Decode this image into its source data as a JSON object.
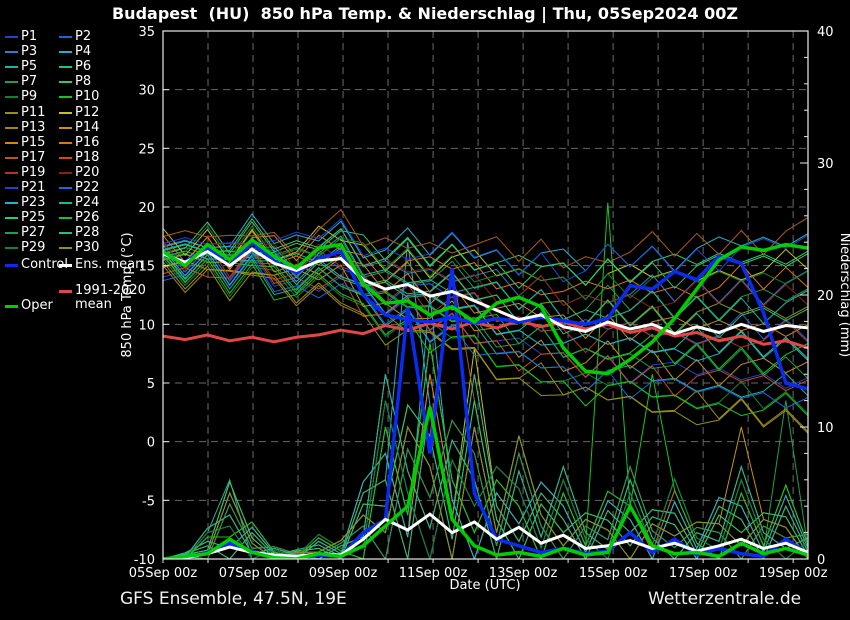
{
  "title": "Budapest  (HU)  850 hPa Temp. & Niederschlag | Thu, 05Sep2024 00Z",
  "footer": {
    "left": "GFS Ensemble, 47.5N, 19E",
    "right": "Wetterzentrale.de"
  },
  "legend": {
    "control_label": "Control",
    "ens_mean_label": "Ens. mean",
    "clim_label": "1991-2020",
    "clim_label2": "mean",
    "oper_label": "Oper"
  },
  "colors": {
    "background": "#000000",
    "text": "#ffffff",
    "grid": "#6a6a6a",
    "axis": "#e8e8e8",
    "control": "#0a2cf0",
    "ens_mean": "#ffffff",
    "clim_mean": "#e04848",
    "oper": "#00cc00"
  },
  "chart_data": {
    "type": "line",
    "title": "Budapest  (HU)  850 hPa Temp. & Niederschlag | Thu, 05Sep2024 00Z",
    "axes": {
      "x": {
        "label": "Date (UTC)",
        "tick_labels": [
          "05Sep 00z",
          "07Sep 00z",
          "09Sep 00z",
          "11Sep 00z",
          "13Sep 00z",
          "15Sep 00z",
          "17Sep 00z",
          "19Sep 00z"
        ],
        "tick_step_days": 2,
        "days_total": 14.33,
        "grid": true
      },
      "y_left": {
        "label": "850 hPa Temp. (°C)",
        "ticks": [
          35,
          30,
          25,
          20,
          15,
          10,
          5,
          0,
          -5,
          -10
        ],
        "min": -10,
        "max": 35,
        "grid": true
      },
      "y_right": {
        "label": "Niederschlag (mm)",
        "ticks": [
          40,
          30,
          20,
          10,
          0
        ],
        "min": 0,
        "max": 40,
        "minor_step": 2
      }
    },
    "x_hours": [
      0,
      12,
      24,
      36,
      48,
      60,
      72,
      84,
      96,
      108,
      120,
      132,
      144,
      156,
      168,
      180,
      192,
      204,
      216,
      228,
      240,
      252,
      264,
      276,
      288,
      300,
      312,
      324,
      336,
      348
    ],
    "series": {
      "ens_mean_temp": [
        16.0,
        15.3,
        16.2,
        15.0,
        16.4,
        15.2,
        14.6,
        15.4,
        15.6,
        13.8,
        13.0,
        13.4,
        12.4,
        12.8,
        12.0,
        11.2,
        10.4,
        10.8,
        9.8,
        9.4,
        10.2,
        9.6,
        10.0,
        9.2,
        9.8,
        9.3,
        10.0,
        9.4,
        9.9,
        9.7
      ],
      "ens_mean_precip": [
        0.0,
        0.1,
        0.4,
        0.9,
        0.5,
        0.3,
        0.2,
        0.4,
        0.3,
        1.5,
        3.0,
        2.2,
        3.4,
        2.0,
        2.8,
        1.5,
        2.4,
        1.2,
        1.8,
        0.8,
        1.0,
        1.4,
        0.8,
        1.2,
        0.6,
        1.0,
        1.5,
        0.8,
        1.2,
        0.5
      ],
      "control_temp": [
        16.0,
        15.3,
        16.6,
        15.0,
        17.0,
        15.4,
        14.4,
        15.6,
        16.2,
        12.5,
        10.8,
        10.4,
        10.2,
        10.6,
        10.1,
        10.5,
        10.2,
        10.6,
        10.3,
        10.0,
        10.5,
        13.3,
        13.0,
        14.5,
        13.8,
        15.8,
        15.2,
        11.0,
        5.0,
        4.5
      ],
      "control_precip": [
        0,
        0,
        0.5,
        1.2,
        0.6,
        0.2,
        0,
        0.3,
        0.2,
        2.0,
        3.0,
        19.0,
        8.0,
        22.0,
        5.0,
        1.5,
        1.0,
        0.5,
        0.8,
        0.4,
        0.6,
        2.0,
        0.5,
        1.5,
        0.3,
        0.8,
        0.4,
        0.2,
        1.5,
        0.4
      ],
      "oper_temp": [
        16.2,
        15.0,
        16.8,
        15.5,
        17.2,
        15.8,
        14.8,
        16.5,
        16.8,
        13.5,
        11.8,
        12.0,
        10.8,
        11.5,
        10.2,
        11.8,
        12.3,
        11.5,
        8.0,
        6.0,
        5.8,
        7.0,
        8.5,
        10.5,
        13.0,
        15.5,
        16.6,
        16.3,
        16.8,
        16.5
      ],
      "oper_precip": [
        0,
        0.2,
        0.4,
        1.5,
        0.5,
        0.1,
        0,
        0.4,
        0.2,
        1.0,
        2.5,
        4.0,
        11.5,
        3.0,
        1.0,
        0.3,
        0.5,
        0.2,
        0.8,
        0.3,
        0.5,
        4.0,
        1.0,
        0.4,
        0.5,
        0.2,
        1.2,
        0.4,
        0.8,
        0.3
      ],
      "clim_mean_temp": [
        9.0,
        8.7,
        9.1,
        8.6,
        8.9,
        8.5,
        8.9,
        9.1,
        9.5,
        9.2,
        9.9,
        9.5,
        10.1,
        9.6,
        10.2,
        9.7,
        10.3,
        9.8,
        10.2,
        9.6,
        10.0,
        9.3,
        9.7,
        9.0,
        9.3,
        8.6,
        9.0,
        8.3,
        8.6,
        8.0
      ]
    },
    "members": [
      {
        "name": "P1",
        "color": "#2243cf",
        "c": -0.77
      },
      {
        "name": "P2",
        "color": "#1d63e3",
        "c": -0.05
      },
      {
        "name": "P3",
        "color": "#2b7fd0",
        "c": 0.67
      },
      {
        "name": "P4",
        "color": "#27b0cd",
        "c": 1.39
      },
      {
        "name": "P5",
        "color": "#1fb49b",
        "c": -0.98
      },
      {
        "name": "P6",
        "color": "#28bd7f",
        "c": -0.26
      },
      {
        "name": "P7",
        "color": "#1f9e4f",
        "c": 0.46
      },
      {
        "name": "P8",
        "color": "#2fc96e",
        "c": 1.19
      },
      {
        "name": "P9",
        "color": "#15802e",
        "c": -1.19
      },
      {
        "name": "P10",
        "color": "#17c522",
        "c": -0.46
      },
      {
        "name": "P11",
        "color": "#93930f",
        "c": 0.26
      },
      {
        "name": "P12",
        "color": "#c4c41d",
        "c": 0.98
      },
      {
        "name": "P13",
        "color": "#a2851a",
        "c": -1.39
      },
      {
        "name": "P14",
        "color": "#c79218",
        "c": -0.67
      },
      {
        "name": "P15",
        "color": "#d4861b",
        "c": 0.05
      },
      {
        "name": "P16",
        "color": "#de7517",
        "c": 0.77
      },
      {
        "name": "P17",
        "color": "#b15b14",
        "c": 1.49
      },
      {
        "name": "P18",
        "color": "#cd4d15",
        "c": -0.88
      },
      {
        "name": "P19",
        "color": "#bf3015",
        "c": -0.15
      },
      {
        "name": "P20",
        "color": "#8e1f10",
        "c": 0.57
      },
      {
        "name": "P21",
        "color": "#2243cf",
        "c": 1.29
      },
      {
        "name": "P22",
        "color": "#1d63e3",
        "c": -1.08
      },
      {
        "name": "P23",
        "color": "#27b0cd",
        "c": -0.36
      },
      {
        "name": "P24",
        "color": "#1fb49b",
        "c": 0.36
      },
      {
        "name": "P25",
        "color": "#2fc96e",
        "c": 1.08
      },
      {
        "name": "P26",
        "color": "#17c522",
        "c": -1.29
      },
      {
        "name": "P27",
        "color": "#1f9e4f",
        "c": -0.57
      },
      {
        "name": "P28",
        "color": "#28bd7f",
        "c": 0.15
      },
      {
        "name": "P29",
        "color": "#15802e",
        "c": 0.88
      },
      {
        "name": "P30",
        "color": "#93930f",
        "c": -1.49
      }
    ],
    "member_model": {
      "wiggle_amp": 0.4,
      "wiggle_mod": 7,
      "precip_mod": 8,
      "precip_div": 3,
      "spread": [
        1.0,
        1.0,
        1.1,
        1.2,
        1.3,
        1.5,
        1.6,
        1.8,
        2.0,
        2.2,
        2.4,
        2.6,
        2.8,
        3.0,
        3.2,
        3.4,
        3.6,
        3.8,
        3.9,
        4.0,
        4.2,
        4.4,
        4.5,
        4.7,
        4.8,
        5.0,
        5.1,
        5.2,
        5.4,
        5.5
      ],
      "precip_envelope": [
        0,
        0.2,
        1.0,
        2.5,
        1.2,
        0.4,
        0.3,
        0.8,
        0.6,
        2.5,
        6.0,
        5.0,
        7.0,
        4.5,
        6.0,
        3.0,
        4.0,
        2.5,
        3.0,
        1.5,
        2.2,
        3.0,
        1.6,
        2.6,
        1.2,
        2.0,
        3.0,
        1.5,
        2.4,
        0.8
      ],
      "spikes": [
        {
          "m": 9,
          "t": 20,
          "v": 27
        },
        {
          "m": 3,
          "t": 11,
          "v": 24
        },
        {
          "m": 16,
          "t": 13,
          "v": 22
        },
        {
          "m": 22,
          "t": 12,
          "v": 20
        },
        {
          "m": 11,
          "t": 14,
          "v": 16
        },
        {
          "m": 25,
          "t": 22,
          "v": 14
        },
        {
          "m": 13,
          "t": 26,
          "v": 10
        },
        {
          "m": 6,
          "t": 28,
          "v": 12
        },
        {
          "m": 4,
          "t": 3,
          "v": 6
        }
      ]
    }
  }
}
